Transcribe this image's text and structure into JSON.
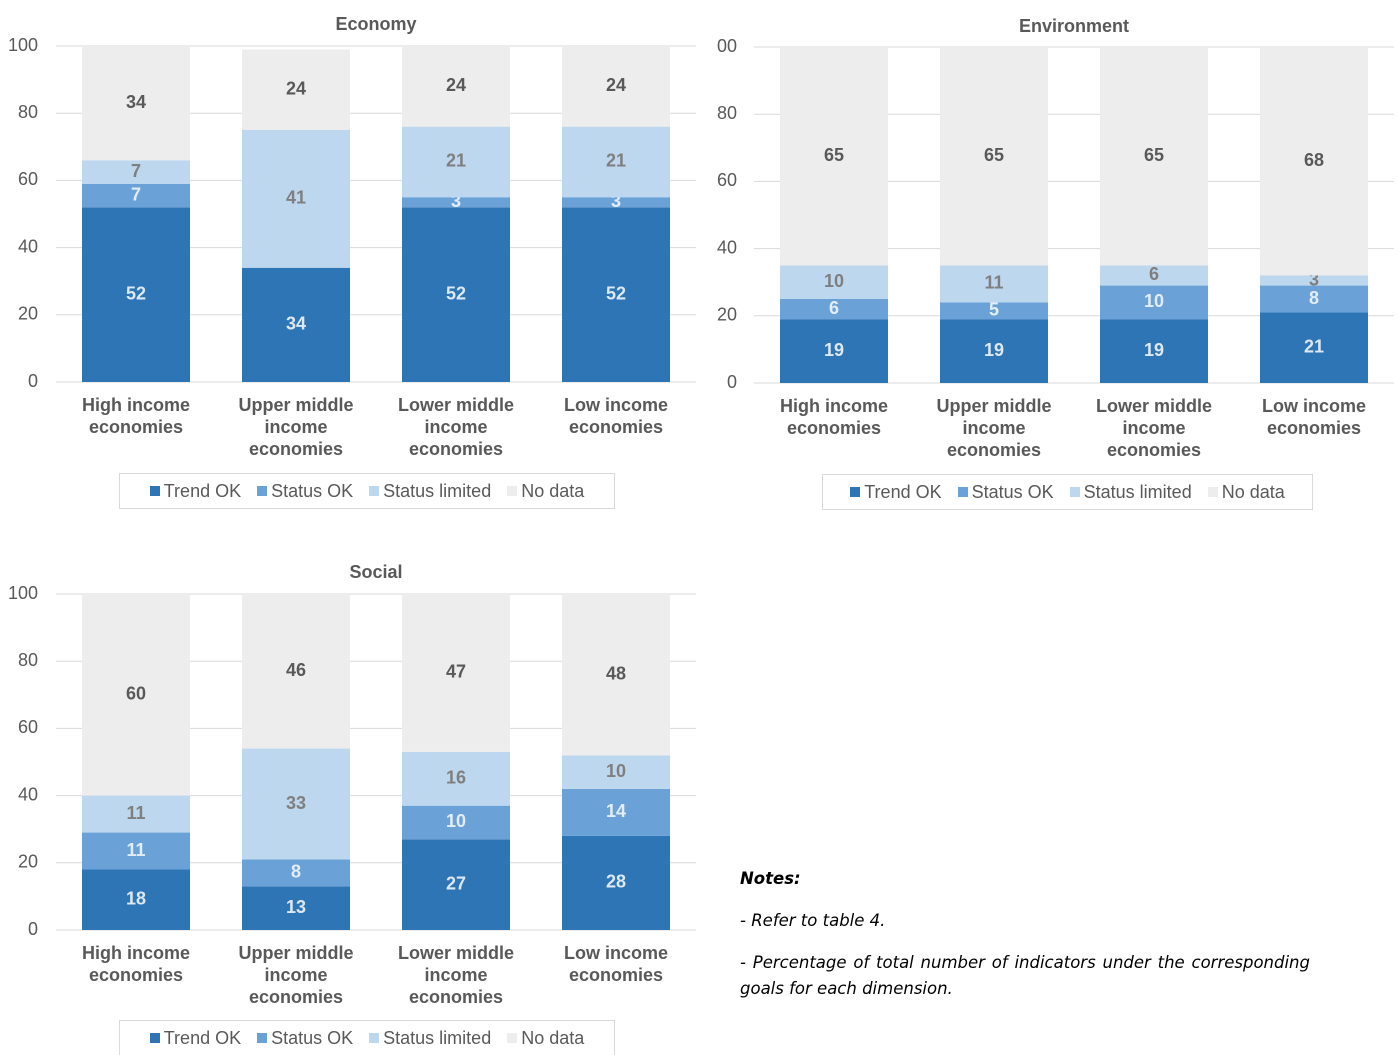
{
  "chart_data": [
    {
      "type": "stacked_bar",
      "title": "Economy",
      "categories": [
        "High income economies",
        "Upper middle income economies",
        "Lower middle income economies",
        "Low income economies"
      ],
      "series": [
        {
          "name": "Trend OK",
          "color": "#2e75b6",
          "label_color": "#dde8f4",
          "values": [
            52,
            34,
            52,
            52
          ]
        },
        {
          "name": "Status OK",
          "color": "#6aa2d8",
          "label_color": "#e3edf7",
          "values": [
            7,
            null,
            3,
            3
          ]
        },
        {
          "name": "Status limited",
          "color": "#bdd7ee",
          "label_color": "#7f7f7f",
          "values": [
            7,
            41,
            21,
            21
          ]
        },
        {
          "name": "No data",
          "color": "#ededed",
          "label_color": "#595959",
          "values": [
            34,
            24,
            24,
            24
          ]
        }
      ],
      "ylim": [
        0,
        100
      ],
      "yticks": [
        0,
        20,
        40,
        60,
        80,
        100
      ],
      "grid": true,
      "legend": "bottom"
    },
    {
      "type": "stacked_bar",
      "title": "Environment",
      "categories": [
        "High income economies",
        "Upper middle income economies",
        "Lower middle income economies",
        "Low income economies"
      ],
      "series": [
        {
          "name": "Trend OK",
          "color": "#2e75b6",
          "label_color": "#dde8f4",
          "values": [
            19,
            19,
            19,
            21
          ]
        },
        {
          "name": "Status OK",
          "color": "#6aa2d8",
          "label_color": "#e3edf7",
          "values": [
            6,
            5,
            10,
            8
          ]
        },
        {
          "name": "Status limited",
          "color": "#bdd7ee",
          "label_color": "#7f7f7f",
          "values": [
            10,
            11,
            6,
            3
          ]
        },
        {
          "name": "No data",
          "color": "#ededed",
          "label_color": "#595959",
          "values": [
            65,
            65,
            65,
            68
          ]
        }
      ],
      "ylim": [
        0,
        100
      ],
      "yticks": [
        0,
        20,
        40,
        60,
        80,
        {
          "value": 100,
          "label": "00"
        }
      ],
      "grid": true,
      "legend": "bottom"
    },
    {
      "type": "stacked_bar",
      "title": "Social",
      "categories": [
        "High income economies",
        "Upper middle income economies",
        "Lower middle income economies",
        "Low income economies"
      ],
      "series": [
        {
          "name": "Trend OK",
          "color": "#2e75b6",
          "label_color": "#dde8f4",
          "values": [
            18,
            13,
            27,
            28
          ]
        },
        {
          "name": "Status OK",
          "color": "#6aa2d8",
          "label_color": "#e3edf7",
          "values": [
            11,
            8,
            10,
            14
          ]
        },
        {
          "name": "Status limited",
          "color": "#bdd7ee",
          "label_color": "#7f7f7f",
          "values": [
            11,
            33,
            16,
            10
          ]
        },
        {
          "name": "No data",
          "color": "#ededed",
          "label_color": "#595959",
          "values": [
            60,
            46,
            47,
            48
          ]
        }
      ],
      "ylim": [
        0,
        100
      ],
      "yticks": [
        0,
        20,
        40,
        60,
        80,
        100
      ],
      "grid": true,
      "legend": "bottom"
    }
  ],
  "notes": {
    "heading": "Notes:",
    "lines": [
      "- Refer to table 4.",
      "- Percentage of total number of indicators under the corresponding goals for each dimension."
    ]
  }
}
